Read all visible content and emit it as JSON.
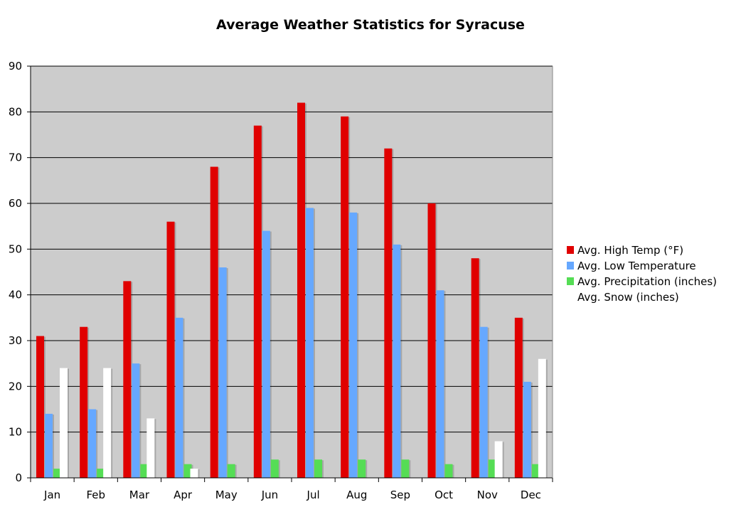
{
  "chart_data": {
    "type": "bar",
    "title": "Average Weather Statistics for Syracuse",
    "categories": [
      "Jan",
      "Feb",
      "Mar",
      "Apr",
      "May",
      "Jun",
      "Jul",
      "Aug",
      "Sep",
      "Oct",
      "Nov",
      "Dec"
    ],
    "series": [
      {
        "name": "Avg. High Temp (°F)",
        "color": "#e00000",
        "values": [
          31,
          33,
          43,
          56,
          68,
          77,
          82,
          79,
          72,
          60,
          48,
          35
        ]
      },
      {
        "name": "Avg. Low Temperature",
        "color": "#66a8ff",
        "values": [
          14,
          15,
          25,
          35,
          46,
          54,
          59,
          58,
          51,
          41,
          33,
          21
        ]
      },
      {
        "name": "Avg. Precipitation (inches)",
        "color": "#55dd55",
        "values": [
          2,
          2,
          3,
          3,
          3,
          4,
          4,
          4,
          4,
          3,
          4,
          3
        ]
      },
      {
        "name": "Avg. Snow (inches)",
        "color": "#ffffff",
        "values": [
          24,
          24,
          13,
          2,
          0,
          0,
          0,
          0,
          0,
          0,
          8,
          26
        ]
      }
    ],
    "ylim": [
      0,
      90
    ],
    "yticks": [
      0,
      10,
      20,
      30,
      40,
      50,
      60,
      70,
      80,
      90
    ],
    "grid": true,
    "legend": "right",
    "plot_background": "#cccccc"
  }
}
